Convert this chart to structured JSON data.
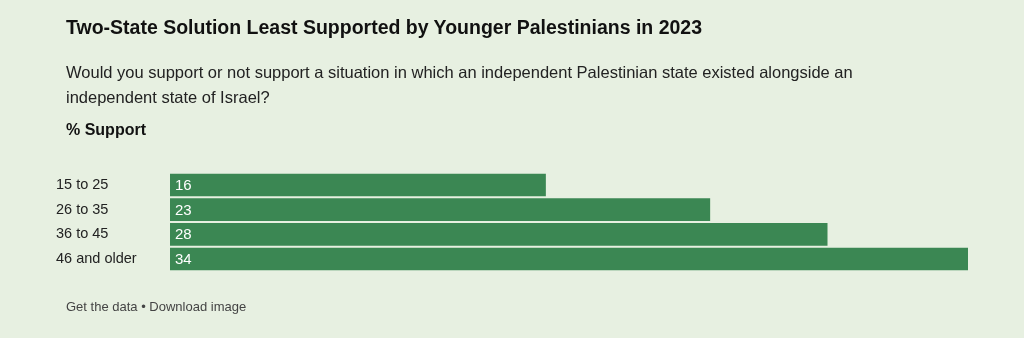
{
  "chart_data": {
    "type": "bar",
    "orientation": "horizontal",
    "title": "Two-State Solution Least Supported by Younger Palestinians in 2023",
    "subtitle": "Would you support or not support a situation in which an independent Palestinian state existed alongside an independent state of Israel?",
    "xlabel": "% Support",
    "categories": [
      "15 to 25",
      "26 to 35",
      "36 to 45",
      "46 and older"
    ],
    "values": [
      16,
      23,
      28,
      34
    ],
    "color": "#3b8753",
    "data_labels": true,
    "legend": false,
    "annotations": [
      "Get the data • Download image"
    ]
  }
}
